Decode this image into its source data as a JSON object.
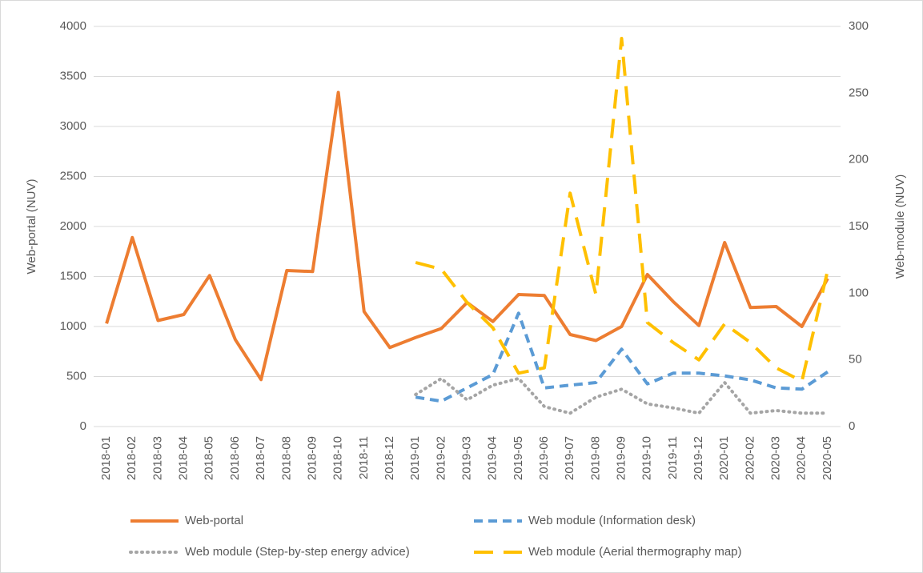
{
  "chart_data": {
    "type": "line",
    "ylabel": "Web-portal (NUV)",
    "y2label": "Web-module (NUV)",
    "categories": [
      "2018-01",
      "2018-02",
      "2018-03",
      "2018-04",
      "2018-05",
      "2018-06",
      "2018-07",
      "2018-08",
      "2018-09",
      "2018-10",
      "2018-11",
      "2018-12",
      "2019-01",
      "2019-02",
      "2019-03",
      "2019-04",
      "2019-05",
      "2019-06",
      "2019-07",
      "2019-08",
      "2019-09",
      "2019-10",
      "2019-11",
      "2019-12",
      "2020-01",
      "2020-02",
      "2020-03",
      "2020-04",
      "2020-05"
    ],
    "ylim": [
      0,
      4000
    ],
    "yticks": [
      0,
      500,
      1000,
      1500,
      2000,
      2500,
      3000,
      3500,
      4000
    ],
    "y2lim": [
      0,
      300
    ],
    "y2ticks": [
      0,
      50,
      100,
      150,
      200,
      250,
      300
    ],
    "grid": true,
    "legend": "bottom",
    "series": [
      {
        "name": "Web-portal",
        "color": "#ED7D31",
        "style": "solid",
        "values": [
          1030,
          1890,
          1060,
          1120,
          1510,
          870,
          470,
          1560,
          1550,
          3340,
          1150,
          790,
          890,
          980,
          1240,
          1050,
          1320,
          1310,
          920,
          860,
          1000,
          1520,
          1250,
          1010,
          1840,
          1190,
          1200,
          1000,
          1480
        ]
      },
      {
        "name": "Web module (Information desk)",
        "color": "#5B9BD5",
        "style": "dashed",
        "axis": "y2",
        "values": [
          null,
          null,
          null,
          null,
          null,
          null,
          null,
          null,
          null,
          null,
          null,
          null,
          22,
          19,
          29,
          39,
          85,
          29,
          31,
          33,
          58,
          32,
          40,
          40,
          38,
          35,
          29,
          28,
          41
        ]
      },
      {
        "name": "Web module (Step-by-step energy advice)",
        "color": "#A5A5A5",
        "style": "dotted",
        "axis": "y2",
        "values": [
          null,
          null,
          null,
          null,
          null,
          null,
          null,
          null,
          null,
          null,
          null,
          null,
          24,
          36,
          20,
          31,
          36,
          15,
          10,
          22,
          28,
          17,
          14,
          10,
          33,
          10,
          12,
          10,
          10
        ]
      },
      {
        "name": "Web module (Aerial thermography map)",
        "color": "#FFC000",
        "style": "long-dash",
        "axis": "y2",
        "values": [
          null,
          null,
          null,
          null,
          null,
          null,
          null,
          null,
          null,
          null,
          null,
          null,
          123,
          118,
          93,
          74,
          40,
          44,
          175,
          99,
          291,
          78,
          63,
          50,
          77,
          63,
          44,
          34,
          117
        ]
      }
    ]
  }
}
